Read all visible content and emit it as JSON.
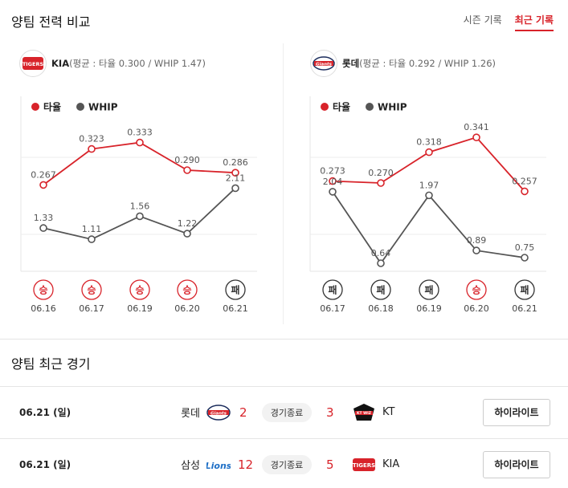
{
  "comparison": {
    "title": "양팀 전력 비교",
    "tabs": [
      {
        "label": "시즌 기록",
        "active": false
      },
      {
        "label": "최근 기록",
        "active": true
      }
    ],
    "legend": {
      "avg": "타율",
      "whip": "WHIP"
    },
    "colors": {
      "avg": "#d8232a",
      "whip": "#555555",
      "win": "#d8232a",
      "loss": "#333333"
    }
  },
  "teams": [
    {
      "name": "KIA",
      "stats_text": "(평균 : 타율 0.300 / WHIP 1.47)",
      "logo_icon": "tigers-logo-icon"
    },
    {
      "name": "롯데",
      "stats_text": "(평균 : 타율 0.292 / WHIP 1.26)",
      "logo_icon": "giants-logo-icon"
    }
  ],
  "chart_data": [
    {
      "type": "line",
      "team": "KIA",
      "categories": [
        "06.16",
        "06.17",
        "06.19",
        "06.20",
        "06.21"
      ],
      "results": [
        "승",
        "승",
        "승",
        "승",
        "패"
      ],
      "series": [
        {
          "name": "타율",
          "values": [
            0.267,
            0.323,
            0.333,
            0.29,
            0.286
          ],
          "labels": [
            "0.267",
            "0.323",
            "0.333",
            "0.290",
            "0.286"
          ]
        },
        {
          "name": "WHIP",
          "values": [
            1.33,
            1.11,
            1.56,
            1.22,
            2.11
          ],
          "labels": [
            "1.33",
            "1.11",
            "1.56",
            "1.22",
            "2.11"
          ]
        }
      ]
    },
    {
      "type": "line",
      "team": "롯데",
      "categories": [
        "06.17",
        "06.18",
        "06.19",
        "06.20",
        "06.21"
      ],
      "results": [
        "패",
        "패",
        "패",
        "승",
        "패"
      ],
      "series": [
        {
          "name": "타율",
          "values": [
            0.273,
            0.27,
            0.318,
            0.341,
            0.257
          ],
          "labels": [
            "0.273",
            "0.270",
            "0.318",
            "0.341",
            "0.257"
          ]
        },
        {
          "name": "WHIP",
          "values": [
            2.04,
            0.64,
            1.97,
            0.89,
            0.75
          ],
          "labels": [
            "2.04",
            "0.64",
            "1.97",
            "0.89",
            "0.75"
          ]
        }
      ]
    }
  ],
  "recent": {
    "title": "양팀 최근 경기",
    "games": [
      {
        "date": "06.21 (일)",
        "home": "롯데",
        "home_icon": "giants-logo-icon",
        "home_score": "2",
        "status": "경기종료",
        "away": "KT",
        "away_icon": "ktwiz-logo-icon",
        "away_score": "3",
        "button": "하이라이트"
      },
      {
        "date": "06.21 (일)",
        "home": "삼성",
        "home_icon": "lions-logo-icon",
        "home_score": "12",
        "status": "경기종료",
        "away": "KIA",
        "away_icon": "tigers-logo-icon",
        "away_score": "5",
        "button": "하이라이트"
      }
    ]
  }
}
